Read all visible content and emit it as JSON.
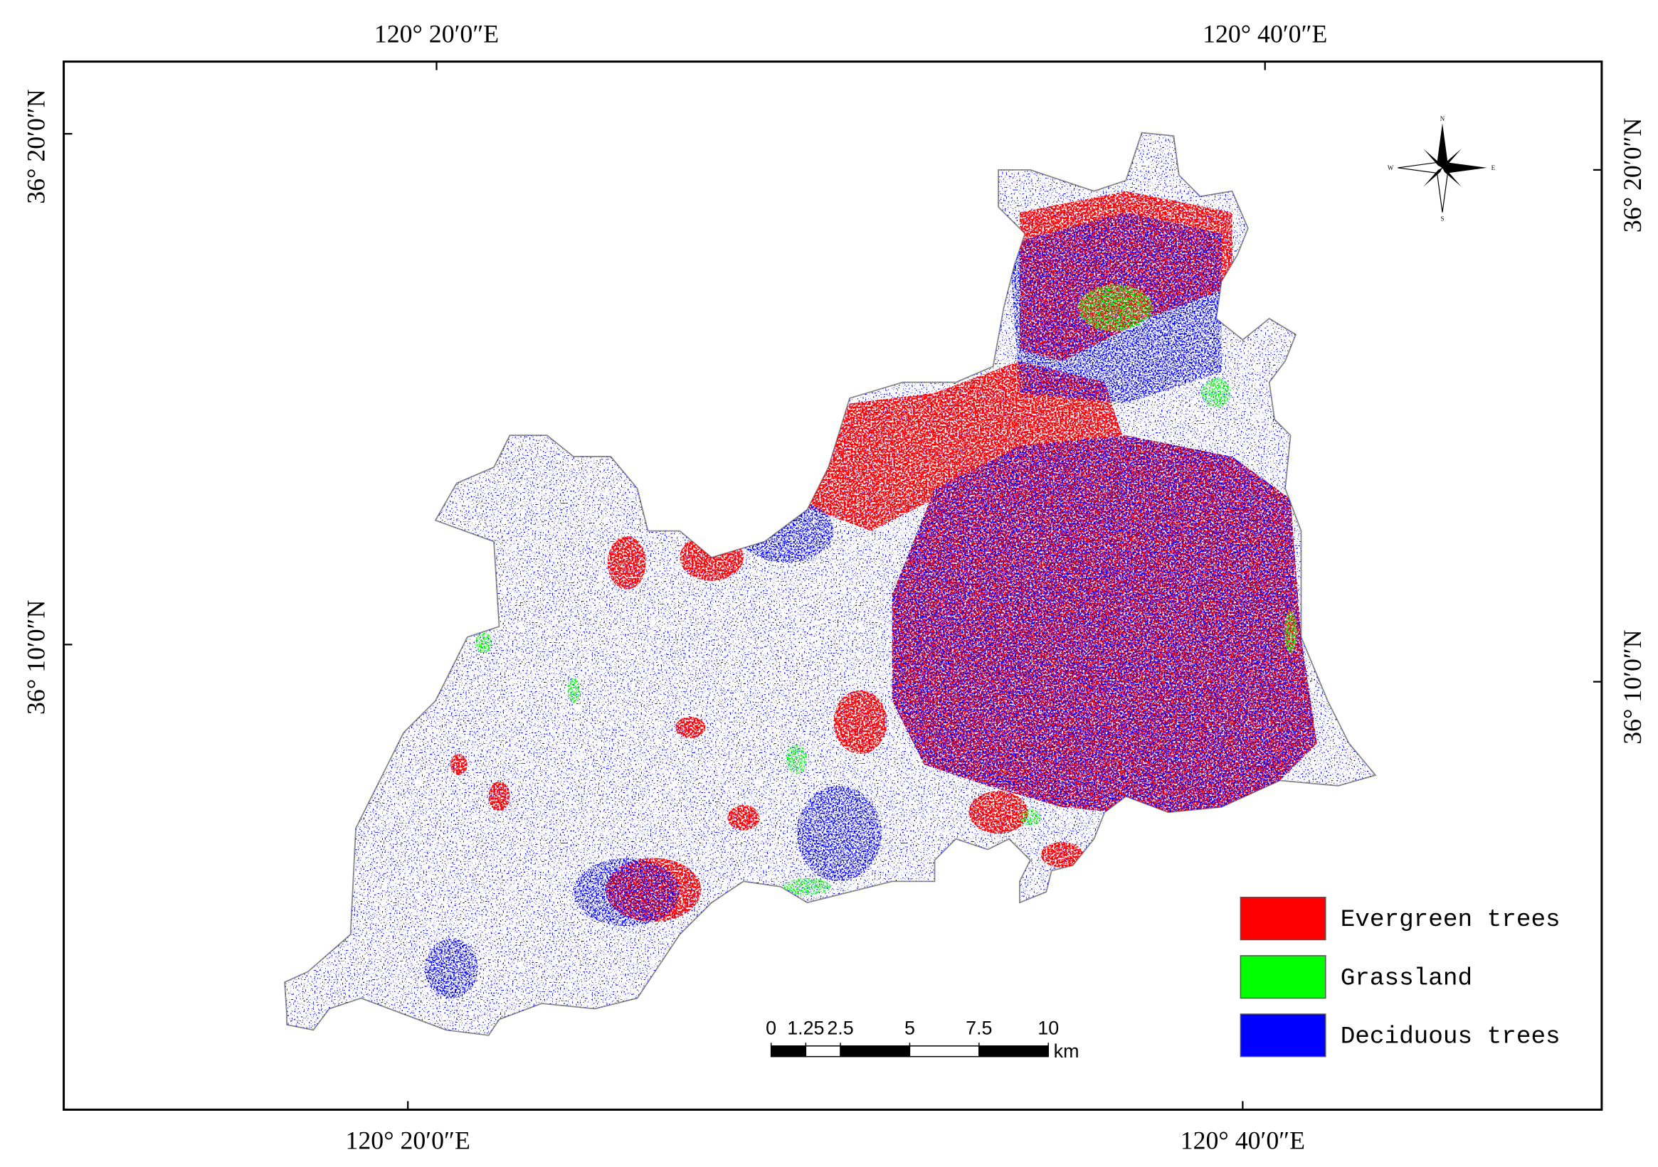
{
  "map": {
    "top_labels": [
      "120° 20′0″E",
      "120° 40′0″E"
    ],
    "bottom_labels": [
      "120° 20′0″E",
      "120° 40′0″E"
    ],
    "left_labels": [
      "36° 20′0″N",
      "36° 10′0″N"
    ],
    "right_labels": [
      "36° 20′0″N",
      "36° 10′0″N"
    ],
    "legend": [
      {
        "label": "Evergreen trees",
        "color": "#ff0000"
      },
      {
        "label": "Grassland",
        "color": "#00ff00"
      },
      {
        "label": "Deciduous trees",
        "color": "#0000ff"
      }
    ],
    "scale_bar": {
      "ticks": [
        0,
        1.25,
        2.5,
        5,
        7.5,
        10
      ],
      "unit": "km"
    },
    "compass": {
      "north": "N",
      "east": "E",
      "south": "S",
      "west": "W"
    }
  }
}
